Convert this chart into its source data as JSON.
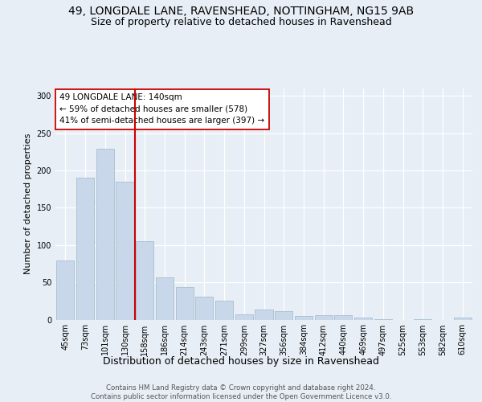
{
  "title_line1": "49, LONGDALE LANE, RAVENSHEAD, NOTTINGHAM, NG15 9AB",
  "title_line2": "Size of property relative to detached houses in Ravenshead",
  "xlabel": "Distribution of detached houses by size in Ravenshead",
  "ylabel": "Number of detached properties",
  "categories": [
    "45sqm",
    "73sqm",
    "101sqm",
    "130sqm",
    "158sqm",
    "186sqm",
    "214sqm",
    "243sqm",
    "271sqm",
    "299sqm",
    "327sqm",
    "356sqm",
    "384sqm",
    "412sqm",
    "440sqm",
    "469sqm",
    "497sqm",
    "525sqm",
    "553sqm",
    "582sqm",
    "610sqm"
  ],
  "values": [
    79,
    190,
    229,
    185,
    105,
    57,
    44,
    31,
    25,
    7,
    13,
    11,
    5,
    6,
    6,
    3,
    1,
    0,
    1,
    0,
    3
  ],
  "bar_color": "#c8d8ea",
  "bar_edge_color": "#a8bece",
  "vline_x_idx": 3,
  "vline_color": "#cc0000",
  "annotation_text": "49 LONGDALE LANE: 140sqm\n← 59% of detached houses are smaller (578)\n41% of semi-detached houses are larger (397) →",
  "annotation_box_facecolor": "#ffffff",
  "annotation_box_edgecolor": "#cc0000",
  "ylim": [
    0,
    310
  ],
  "yticks": [
    0,
    50,
    100,
    150,
    200,
    250,
    300
  ],
  "bg_color": "#e8eef5",
  "grid_color": "#ffffff",
  "footer_text": "Contains HM Land Registry data © Crown copyright and database right 2024.\nContains public sector information licensed under the Open Government Licence v3.0.",
  "title_fontsize": 10,
  "subtitle_fontsize": 9,
  "ylabel_fontsize": 8,
  "xlabel_fontsize": 9,
  "tick_fontsize": 7,
  "annotation_fontsize": 7.5,
  "footer_fontsize": 6.2
}
